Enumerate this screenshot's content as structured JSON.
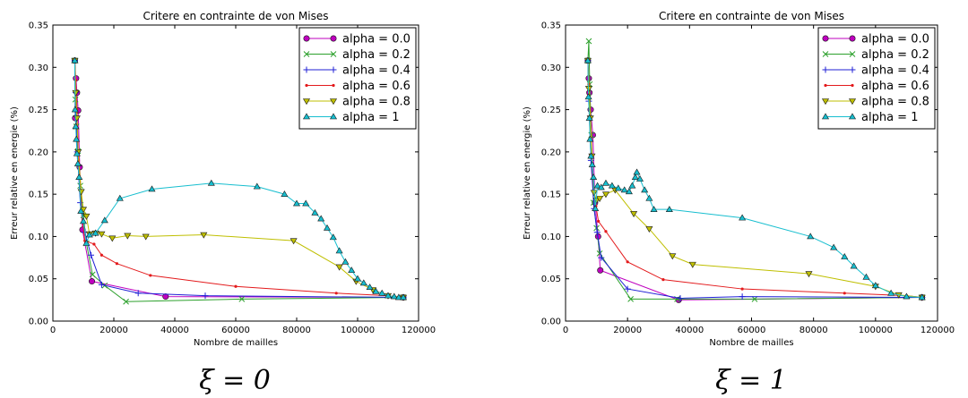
{
  "chart_data": [
    {
      "type": "line",
      "title": "Critere en contrainte de von Mises",
      "xlabel": "Nombre de mailles",
      "ylabel": "Erreur relative en energie (%)",
      "caption": "ξ = 0",
      "xlim": [
        0,
        120000
      ],
      "ylim": [
        0,
        0.35
      ],
      "xticks": [
        "0",
        "20000",
        "40000",
        "60000",
        "80000",
        "100000",
        "120000"
      ],
      "yticks": [
        "0.00",
        "0.05",
        "0.10",
        "0.15",
        "0.20",
        "0.25",
        "0.30",
        "0.35"
      ],
      "legend_position": "top-right",
      "series": [
        {
          "name": "alpha = 0.0",
          "color": "#bf00bf",
          "marker": "circle",
          "points": [
            [
              7200,
              0.308
            ],
            [
              7300,
              0.24
            ],
            [
              7600,
              0.287
            ],
            [
              7900,
              0.27
            ],
            [
              8300,
              0.249
            ],
            [
              8800,
              0.182
            ],
            [
              9700,
              0.108
            ],
            [
              12800,
              0.047
            ],
            [
              37000,
              0.029
            ],
            [
              115000,
              0.028
            ]
          ]
        },
        {
          "name": "alpha = 0.2",
          "color": "#2ca02c",
          "marker": "x",
          "points": [
            [
              7200,
              0.308
            ],
            [
              7400,
              0.262
            ],
            [
              7700,
              0.23
            ],
            [
              8200,
              0.201
            ],
            [
              9000,
              0.16
            ],
            [
              10000,
              0.125
            ],
            [
              11000,
              0.092
            ],
            [
              13000,
              0.055
            ],
            [
              17000,
              0.042
            ],
            [
              24000,
              0.023
            ],
            [
              62000,
              0.026
            ],
            [
              115000,
              0.028
            ]
          ]
        },
        {
          "name": "alpha = 0.4",
          "color": "#1f1fd6",
          "marker": "plus",
          "points": [
            [
              7200,
              0.308
            ],
            [
              7500,
              0.27
            ],
            [
              8000,
              0.2
            ],
            [
              9000,
              0.14
            ],
            [
              10500,
              0.105
            ],
            [
              12500,
              0.078
            ],
            [
              16000,
              0.043
            ],
            [
              28000,
              0.033
            ],
            [
              50000,
              0.03
            ],
            [
              115000,
              0.028
            ]
          ]
        },
        {
          "name": "alpha = 0.6",
          "color": "#e31a1c",
          "marker": "dot",
          "points": [
            [
              7200,
              0.308
            ],
            [
              7500,
              0.285
            ],
            [
              7900,
              0.25
            ],
            [
              8400,
              0.19
            ],
            [
              9300,
              0.13
            ],
            [
              10500,
              0.095
            ],
            [
              13500,
              0.091
            ],
            [
              16000,
              0.078
            ],
            [
              21000,
              0.068
            ],
            [
              32000,
              0.054
            ],
            [
              60000,
              0.041
            ],
            [
              93000,
              0.033
            ],
            [
              110000,
              0.03
            ],
            [
              115000,
              0.028
            ]
          ]
        },
        {
          "name": "alpha = 0.8",
          "color": "#bfbf00",
          "marker": "triangle-down",
          "points": [
            [
              7200,
              0.308
            ],
            [
              7500,
              0.27
            ],
            [
              7900,
              0.24
            ],
            [
              8300,
              0.2
            ],
            [
              9300,
              0.153
            ],
            [
              10000,
              0.132
            ],
            [
              11000,
              0.124
            ],
            [
              12000,
              0.103
            ],
            [
              14000,
              0.104
            ],
            [
              16000,
              0.103
            ],
            [
              19500,
              0.098
            ],
            [
              24500,
              0.101
            ],
            [
              30500,
              0.1
            ],
            [
              49500,
              0.102
            ],
            [
              79000,
              0.095
            ],
            [
              94000,
              0.064
            ],
            [
              99500,
              0.047
            ],
            [
              105000,
              0.037
            ],
            [
              110000,
              0.03
            ],
            [
              115000,
              0.028
            ]
          ]
        },
        {
          "name": "alpha = 1",
          "color": "#17becf",
          "marker": "triangle-up",
          "points": [
            [
              7200,
              0.308
            ],
            [
              7300,
              0.25
            ],
            [
              7500,
              0.23
            ],
            [
              7700,
              0.215
            ],
            [
              7900,
              0.198
            ],
            [
              8200,
              0.186
            ],
            [
              8600,
              0.17
            ],
            [
              9200,
              0.13
            ],
            [
              10000,
              0.118
            ],
            [
              11000,
              0.092
            ],
            [
              12000,
              0.102
            ],
            [
              14000,
              0.104
            ],
            [
              17000,
              0.119
            ],
            [
              22000,
              0.145
            ],
            [
              32500,
              0.156
            ],
            [
              52000,
              0.163
            ],
            [
              67000,
              0.159
            ],
            [
              76000,
              0.15
            ],
            [
              80000,
              0.139
            ],
            [
              83000,
              0.139
            ],
            [
              86000,
              0.128
            ],
            [
              88000,
              0.121
            ],
            [
              90000,
              0.11
            ],
            [
              92000,
              0.099
            ],
            [
              94000,
              0.083
            ],
            [
              96000,
              0.07
            ],
            [
              98000,
              0.06
            ],
            [
              100000,
              0.05
            ],
            [
              102000,
              0.045
            ],
            [
              104000,
              0.04
            ],
            [
              106000,
              0.035
            ],
            [
              108000,
              0.033
            ],
            [
              110000,
              0.03
            ],
            [
              112000,
              0.029
            ],
            [
              113500,
              0.028
            ],
            [
              115000,
              0.028
            ]
          ]
        }
      ]
    },
    {
      "type": "line",
      "title": "Critere en contrainte de von Mises",
      "xlabel": "Nombre de mailles",
      "ylabel": "Erreur relative en energie (%)",
      "caption": "ξ = 1",
      "xlim": [
        0,
        120000
      ],
      "ylim": [
        0,
        0.35
      ],
      "xticks": [
        "0",
        "20000",
        "40000",
        "60000",
        "80000",
        "100000",
        "120000"
      ],
      "yticks": [
        "0.00",
        "0.05",
        "0.10",
        "0.15",
        "0.20",
        "0.25",
        "0.30",
        "0.35"
      ],
      "legend_position": "top-right",
      "series": [
        {
          "name": "alpha = 0.0",
          "color": "#bf00bf",
          "marker": "circle",
          "points": [
            [
              7200,
              0.308
            ],
            [
              7500,
              0.287
            ],
            [
              7700,
              0.27
            ],
            [
              8100,
              0.25
            ],
            [
              8800,
              0.22
            ],
            [
              9500,
              0.14
            ],
            [
              10500,
              0.1
            ],
            [
              11200,
              0.06
            ],
            [
              36500,
              0.025
            ],
            [
              115000,
              0.028
            ]
          ]
        },
        {
          "name": "alpha = 0.2",
          "color": "#2ca02c",
          "marker": "x",
          "points": [
            [
              7200,
              0.308
            ],
            [
              7500,
              0.331
            ],
            [
              7800,
              0.28
            ],
            [
              8300,
              0.22
            ],
            [
              9000,
              0.14
            ],
            [
              10000,
              0.11
            ],
            [
              11000,
              0.08
            ],
            [
              21000,
              0.026
            ],
            [
              36000,
              0.026
            ],
            [
              61000,
              0.026
            ],
            [
              115000,
              0.028
            ]
          ]
        },
        {
          "name": "alpha = 0.4",
          "color": "#1f1fd6",
          "marker": "plus",
          "points": [
            [
              7200,
              0.308
            ],
            [
              7500,
              0.26
            ],
            [
              8200,
              0.19
            ],
            [
              9200,
              0.133
            ],
            [
              10200,
              0.105
            ],
            [
              11500,
              0.075
            ],
            [
              20000,
              0.038
            ],
            [
              37000,
              0.027
            ],
            [
              57000,
              0.029
            ],
            [
              115000,
              0.028
            ]
          ]
        },
        {
          "name": "alpha = 0.6",
          "color": "#e31a1c",
          "marker": "dot",
          "points": [
            [
              7200,
              0.308
            ],
            [
              7500,
              0.28
            ],
            [
              8000,
              0.24
            ],
            [
              8800,
              0.17
            ],
            [
              9800,
              0.136
            ],
            [
              10600,
              0.118
            ],
            [
              13000,
              0.106
            ],
            [
              20000,
              0.07
            ],
            [
              31500,
              0.049
            ],
            [
              57000,
              0.038
            ],
            [
              90000,
              0.033
            ],
            [
              110000,
              0.03
            ],
            [
              115000,
              0.028
            ]
          ]
        },
        {
          "name": "alpha = 0.8",
          "color": "#bfbf00",
          "marker": "triangle-down",
          "points": [
            [
              7200,
              0.308
            ],
            [
              7500,
              0.275
            ],
            [
              8000,
              0.24
            ],
            [
              8500,
              0.195
            ],
            [
              9200,
              0.152
            ],
            [
              10000,
              0.143
            ],
            [
              11000,
              0.145
            ],
            [
              13000,
              0.15
            ],
            [
              16000,
              0.155
            ],
            [
              22000,
              0.127
            ],
            [
              27000,
              0.109
            ],
            [
              34500,
              0.077
            ],
            [
              41000,
              0.067
            ],
            [
              78500,
              0.056
            ],
            [
              100000,
              0.041
            ],
            [
              107500,
              0.031
            ],
            [
              115000,
              0.028
            ]
          ]
        },
        {
          "name": "alpha = 1",
          "color": "#17becf",
          "marker": "triangle-up",
          "points": [
            [
              7200,
              0.308
            ],
            [
              7400,
              0.265
            ],
            [
              7700,
              0.24
            ],
            [
              7900,
              0.215
            ],
            [
              8200,
              0.195
            ],
            [
              8600,
              0.185
            ],
            [
              9000,
              0.17
            ],
            [
              9600,
              0.133
            ],
            [
              10300,
              0.16
            ],
            [
              11500,
              0.158
            ],
            [
              13000,
              0.163
            ],
            [
              15000,
              0.16
            ],
            [
              17000,
              0.157
            ],
            [
              19000,
              0.155
            ],
            [
              20500,
              0.153
            ],
            [
              21500,
              0.16
            ],
            [
              22500,
              0.17
            ],
            [
              23000,
              0.176
            ],
            [
              24000,
              0.168
            ],
            [
              25500,
              0.155
            ],
            [
              27000,
              0.145
            ],
            [
              28500,
              0.132
            ],
            [
              33500,
              0.132
            ],
            [
              57000,
              0.122
            ],
            [
              79000,
              0.1
            ],
            [
              86500,
              0.087
            ],
            [
              90000,
              0.076
            ],
            [
              93000,
              0.065
            ],
            [
              97000,
              0.052
            ],
            [
              100000,
              0.042
            ],
            [
              105000,
              0.033
            ],
            [
              110000,
              0.029
            ],
            [
              115000,
              0.028
            ]
          ]
        }
      ]
    }
  ]
}
